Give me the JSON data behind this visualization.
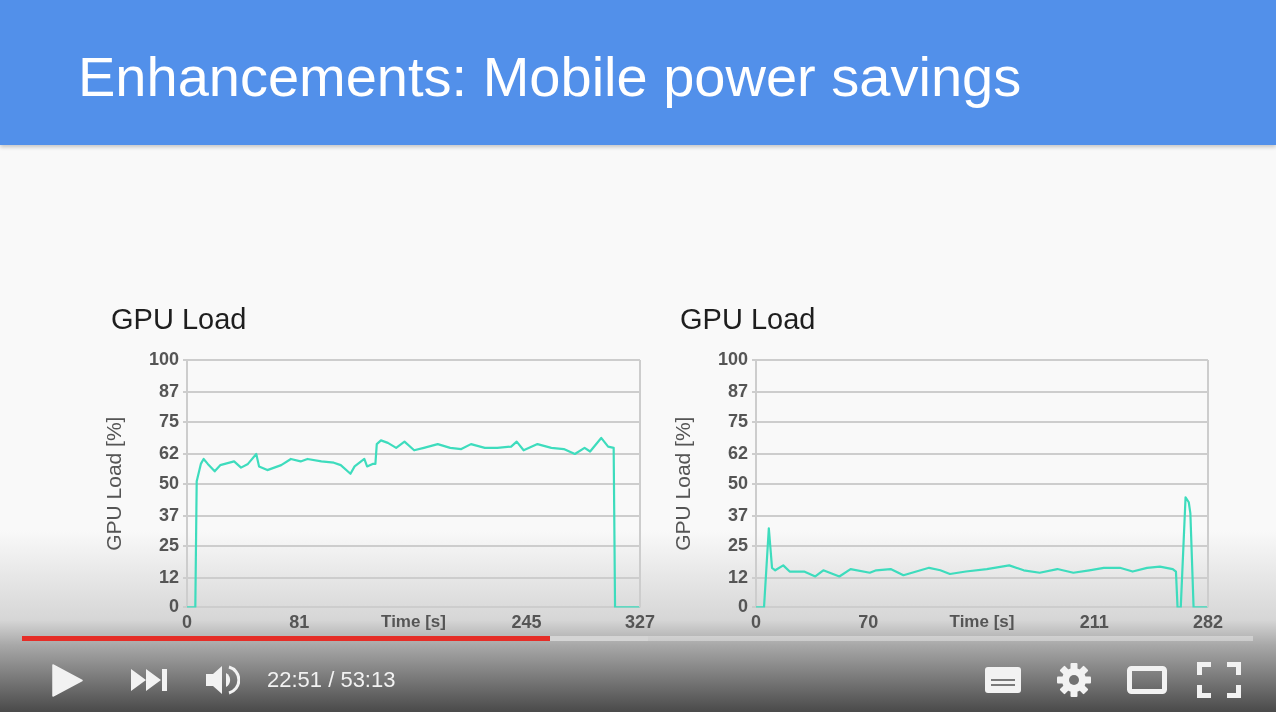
{
  "chart_data": [
    {
      "type": "other",
      "title": "Enhancements: Mobile power savings"
    },
    {
      "type": "line",
      "title": "GPU Load",
      "xlabel": "Time [s]",
      "ylabel": "GPU Load [%]",
      "x": [
        0,
        6,
        7,
        10,
        12,
        15,
        20,
        24,
        34,
        39,
        44,
        50,
        52,
        58,
        68,
        75,
        82,
        87,
        97,
        106,
        111,
        118,
        121,
        128,
        130,
        134,
        136,
        137,
        140,
        145,
        151,
        157,
        164,
        171,
        181,
        190,
        198,
        205,
        215,
        224,
        234,
        238,
        243,
        253,
        263,
        272,
        280,
        287,
        291,
        299,
        304,
        308,
        309,
        327
      ],
      "series": [
        {
          "color": "#3edcbd",
          "values": [
            0,
            0,
            51,
            58,
            60,
            58,
            55,
            57.5,
            59,
            56.5,
            58,
            62,
            57,
            55.5,
            57.5,
            60,
            59,
            60,
            59,
            58.5,
            57.5,
            54,
            57,
            60,
            57,
            58,
            58,
            66,
            67.5,
            66.5,
            64.5,
            67,
            63.5,
            64.5,
            66,
            64.5,
            64,
            66,
            64.5,
            64.5,
            65,
            67,
            63.5,
            66,
            64.5,
            64,
            62,
            64.5,
            63,
            68.5,
            65,
            64.5,
            0,
            0
          ]
        }
      ],
      "xlim": [
        0,
        327
      ],
      "xticks": [
        0,
        81,
        245,
        327
      ],
      "ylim": [
        0,
        100
      ],
      "yticks": [
        0,
        12,
        25,
        37,
        50,
        62,
        75,
        87,
        100
      ],
      "grid": "y",
      "legend": false,
      "marker": "none"
    },
    {
      "type": "line",
      "title": "GPU Load",
      "xlabel": "Time [s]",
      "ylabel": "GPU Load [%]",
      "x": [
        0,
        5,
        8,
        10,
        12,
        17,
        21,
        30,
        37,
        42,
        52,
        59,
        71,
        75,
        84,
        92,
        100,
        108,
        115,
        121,
        131,
        144,
        158,
        167,
        177,
        188,
        198,
        208,
        217,
        227,
        235,
        244,
        252,
        260,
        262,
        263,
        265,
        268,
        270,
        271,
        273,
        282
      ],
      "series": [
        {
          "color": "#3edcbd",
          "values": [
            0,
            0,
            32,
            16,
            15,
            17,
            14.5,
            14.5,
            12.5,
            15,
            12.5,
            15.5,
            14,
            15,
            15.5,
            13,
            14.5,
            16,
            15,
            13.5,
            14.5,
            15.5,
            17,
            15,
            14,
            15.5,
            14,
            15,
            16,
            16,
            14.5,
            16,
            16.5,
            15.5,
            14.5,
            0,
            0,
            44.5,
            42.5,
            38,
            0,
            0
          ]
        }
      ],
      "xlim": [
        0,
        282
      ],
      "xticks": [
        0,
        70,
        211,
        282
      ],
      "ylim": [
        0,
        100
      ],
      "yticks": [
        0,
        12,
        25,
        37,
        50,
        62,
        75,
        87,
        100
      ],
      "grid": "y",
      "legend": false,
      "marker": "none"
    },
    {
      "type": "other",
      "annotations": [
        "22:51 / 53:13"
      ]
    }
  ]
}
